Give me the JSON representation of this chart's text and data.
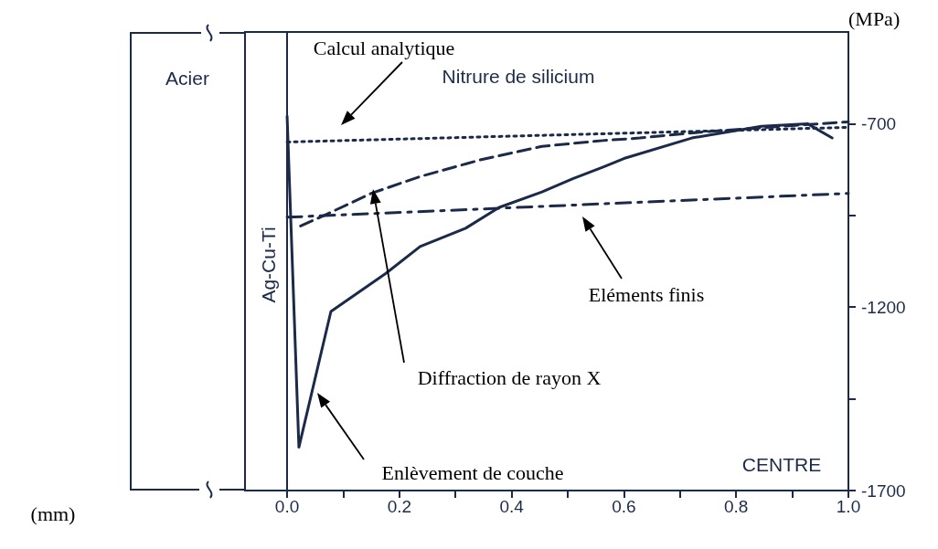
{
  "chart_data": {
    "type": "line",
    "ylabel": "(MPa)",
    "xlim": [
      -0.075,
      1.0
    ],
    "ylim": [
      -1700,
      -450
    ],
    "xticks": [
      {
        "value": 0,
        "label": "0.0"
      },
      {
        "value": 0.1,
        "label": null
      },
      {
        "value": 0.2,
        "label": "0.2"
      },
      {
        "value": 0.3,
        "label": null
      },
      {
        "value": 0.4,
        "label": "0.4"
      },
      {
        "value": 0.5,
        "label": null
      },
      {
        "value": 0.6,
        "label": "0.6"
      },
      {
        "value": 0.7,
        "label": null
      },
      {
        "value": 0.8,
        "label": "0.8"
      },
      {
        "value": 0.9,
        "label": null
      },
      {
        "value": 1.0,
        "label": "1.0"
      }
    ],
    "yticks": [
      -700,
      {
        "value": -950,
        "label": null
      },
      -1200,
      {
        "value": -1450,
        "label": null
      },
      -1700
    ],
    "grid": false,
    "marker": "none",
    "series": [
      {
        "color": "#1c2a4a",
        "line_style": "dotted",
        "x": [
          0,
          1.0
        ],
        "values": [
          -750,
          -710
        ]
      },
      {
        "color": "#1c2a4a",
        "line_style": "dashed",
        "x": [
          0.024,
          0.073,
          0.15,
          0.237,
          0.346,
          0.454,
          0.563,
          0.628,
          0.737,
          0.9,
          1.0
        ],
        "values": [
          -979,
          -945,
          -890,
          -844,
          -798,
          -762,
          -746,
          -739,
          -723,
          -705,
          -695
        ]
      },
      {
        "color": "#1c2a4a",
        "line_style": "dashdot",
        "x": [
          0,
          1.0
        ],
        "values": [
          -955,
          -890
        ]
      },
      {
        "color": "#1c2a4a",
        "line_style": "solid",
        "x": [
          0,
          0.021,
          0.078,
          0.176,
          0.237,
          0.318,
          0.378,
          0.454,
          0.509,
          0.563,
          0.6,
          0.721,
          0.845,
          0.927,
          0.971
        ],
        "values": [
          -680,
          -1582,
          -1212,
          -1108,
          -1035,
          -985,
          -928,
          -886,
          -850,
          -818,
          -795,
          -739,
          -707,
          -700,
          -739
        ]
      }
    ],
    "ref_lines": [
      {
        "axis": "x",
        "value": 0,
        "color": "#1c2a4a"
      }
    ],
    "annotations": [
      "Calcul analytique",
      "Diffraction de rayon X",
      "Eléments finis",
      "Enlèvement de couche",
      "Acier",
      "Nitrure de silicium",
      "Ag-Cu-Ti",
      "CENTRE",
      "(mm)"
    ]
  }
}
